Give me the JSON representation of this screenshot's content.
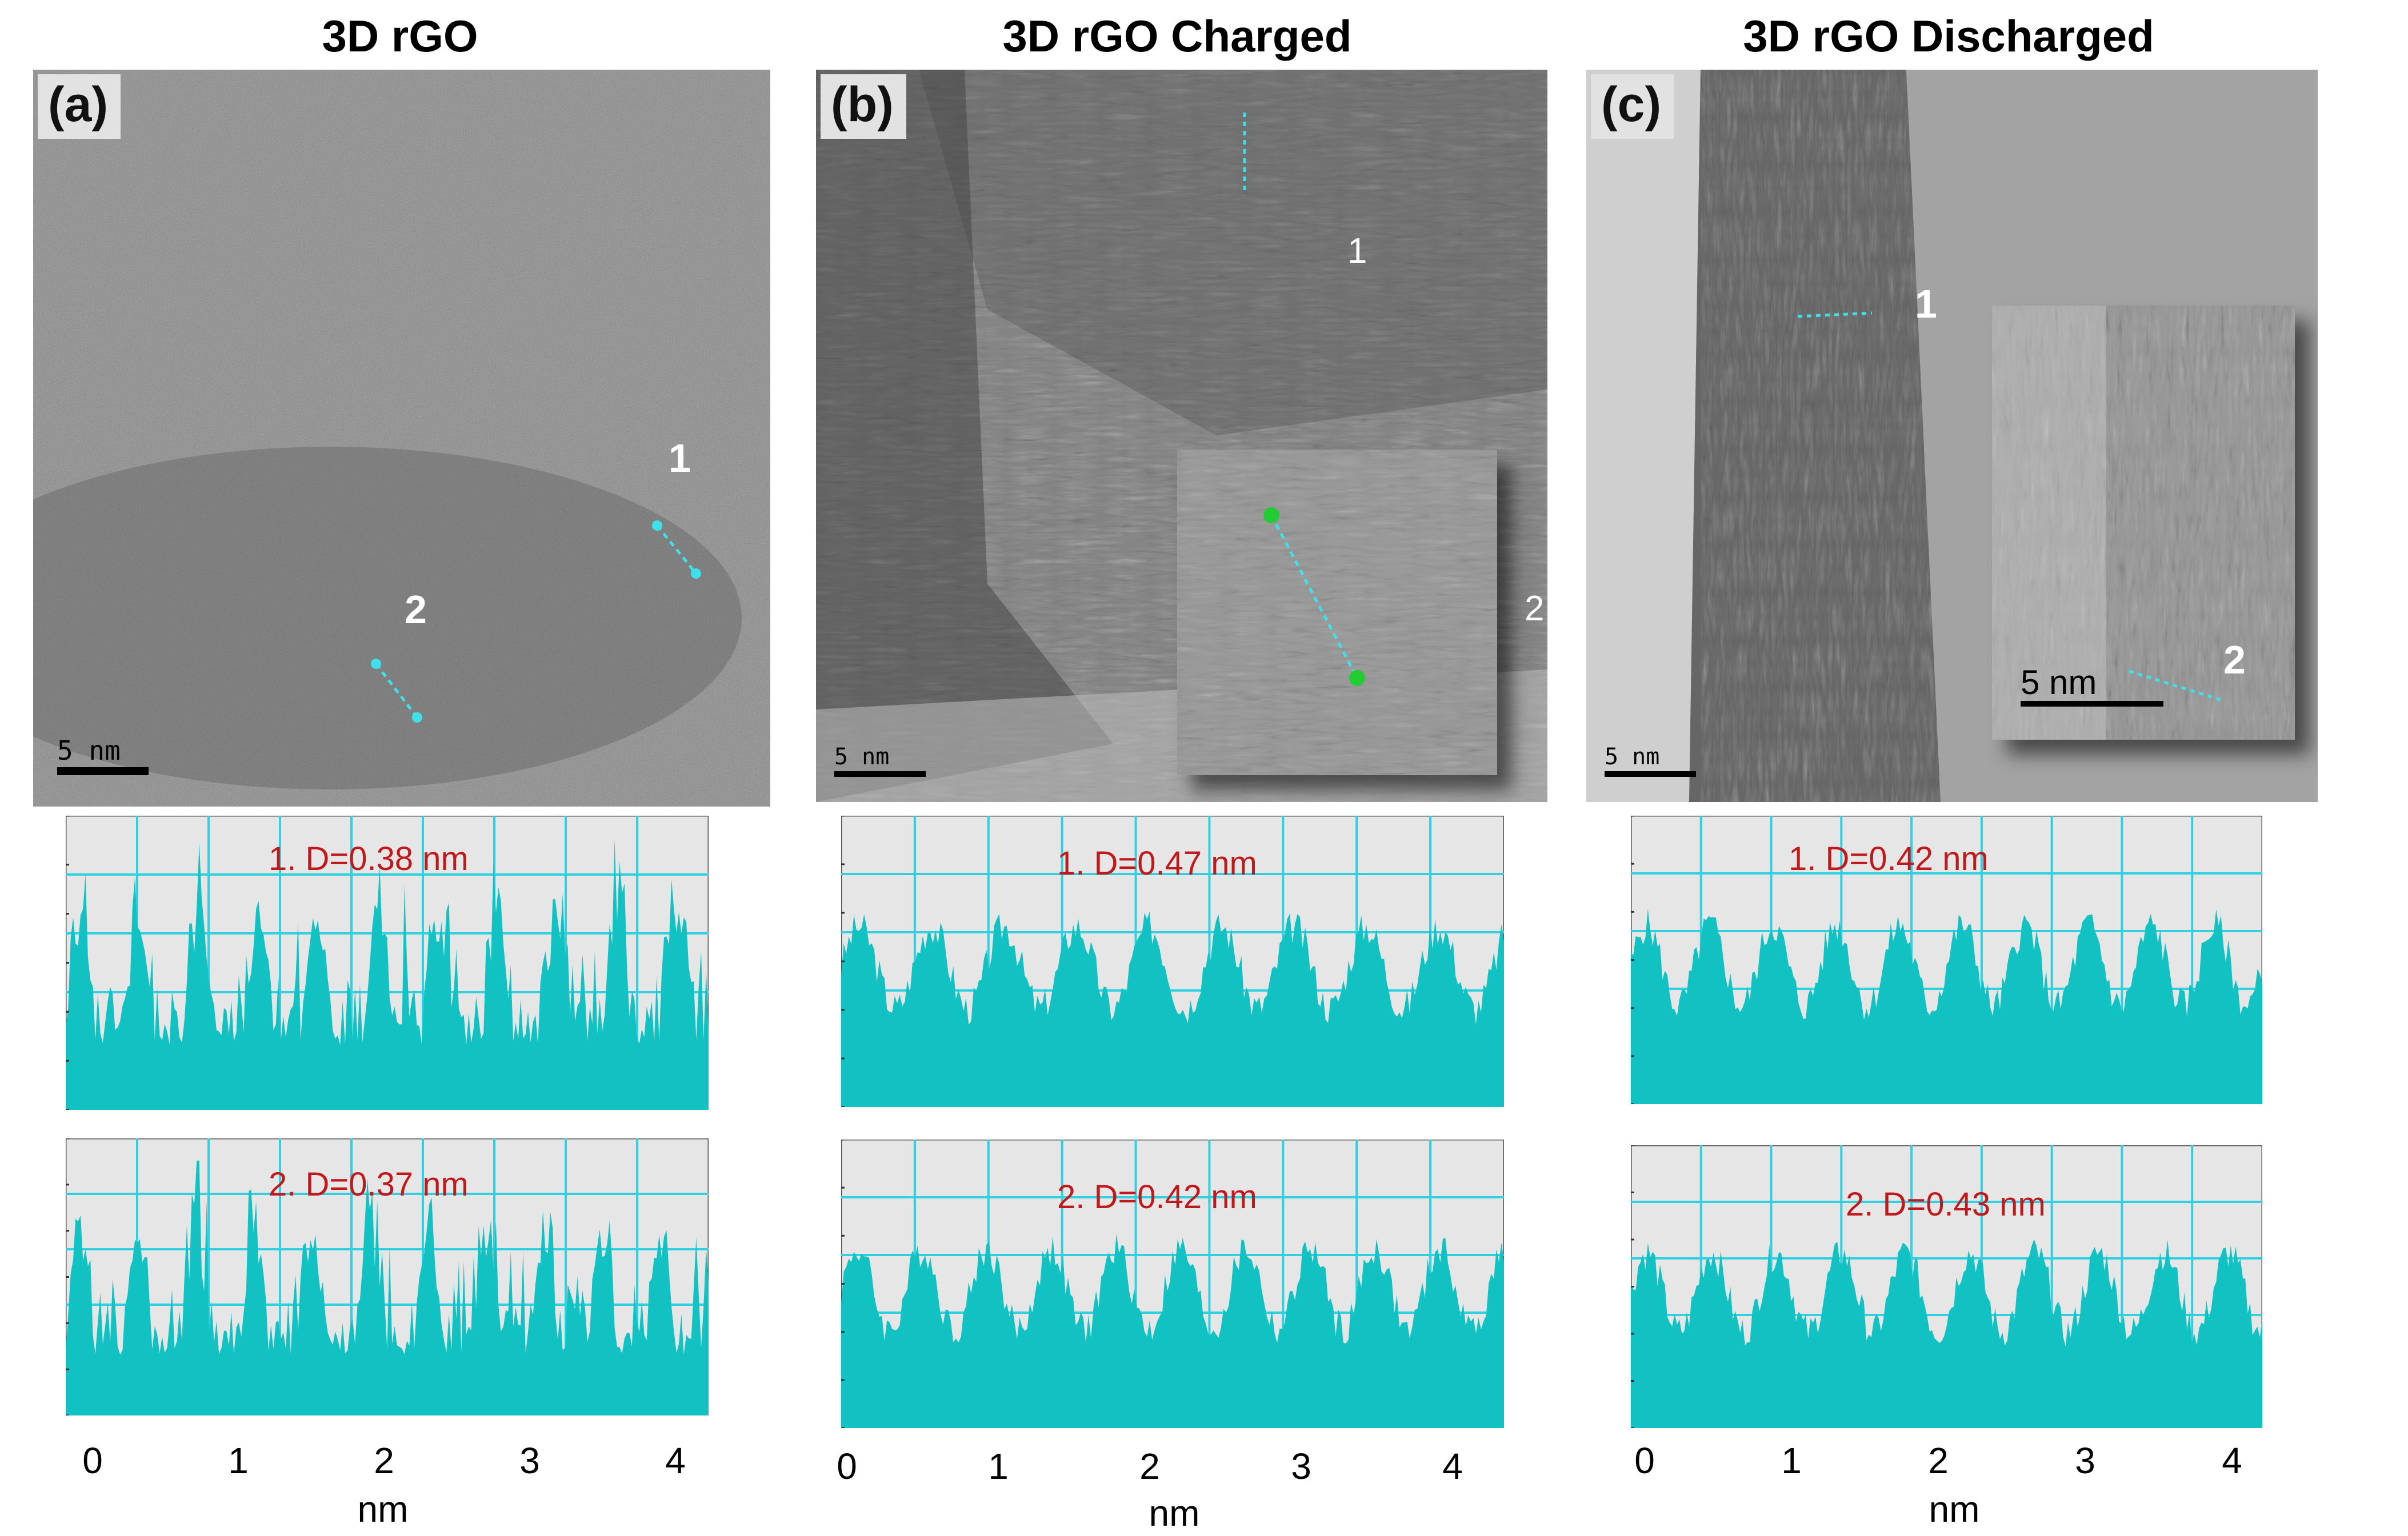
{
  "columns": [
    {
      "title": "3D rGO",
      "panel": "(a)",
      "scale": "5 nm",
      "markers": [
        "1",
        "2"
      ],
      "profiles": [
        "1. D=0.38 nm",
        "2. D=0.37 nm"
      ],
      "xticks": [
        "0",
        "1",
        "2",
        "3",
        "4"
      ],
      "xlabel": "nm"
    },
    {
      "title": "3D rGO Charged",
      "panel": "(b)",
      "scale": "5 nm",
      "markers": [
        "1",
        "2"
      ],
      "profiles": [
        "1. D=0.47 nm",
        "2. D=0.42 nm"
      ],
      "xticks": [
        "0",
        "1",
        "2",
        "3",
        "4"
      ],
      "xlabel": "nm"
    },
    {
      "title": "3D rGO Discharged",
      "panel": "(c)",
      "scale": "5 nm",
      "inset_scale": "5 nm",
      "markers": [
        "1",
        "2"
      ],
      "profiles": [
        "1. D=0.42 nm",
        "2. D=0.43 nm"
      ],
      "xticks": [
        "0",
        "1",
        "2",
        "3",
        "4"
      ],
      "xlabel": "nm"
    }
  ],
  "colors": {
    "profile_fill": "#12c2c2",
    "grid": "#30d0e0",
    "plot_bg": "#e6e6e6",
    "annotation": "#c0191c",
    "marker_line": "#3fe0ea"
  },
  "chart_data": [
    {
      "type": "area",
      "title": "1. D=0.38 nm",
      "panel": "(a)",
      "xlabel": "nm",
      "xlim": [
        0,
        4.1
      ],
      "period": 0.38
    },
    {
      "type": "area",
      "title": "2. D=0.37 nm",
      "panel": "(a)",
      "xlabel": "nm",
      "xlim": [
        0,
        4.1
      ],
      "period": 0.37
    },
    {
      "type": "area",
      "title": "1. D=0.47 nm",
      "panel": "(b)",
      "xlabel": "nm",
      "xlim": [
        0,
        4.3
      ],
      "period": 0.47
    },
    {
      "type": "area",
      "title": "2. D=0.42 nm",
      "panel": "(b)",
      "xlabel": "nm",
      "xlim": [
        0,
        4.3
      ],
      "period": 0.42
    },
    {
      "type": "area",
      "title": "1. D=0.42 nm",
      "panel": "(c)",
      "xlabel": "nm",
      "xlim": [
        0,
        4.2
      ],
      "period": 0.42
    },
    {
      "type": "area",
      "title": "2. D=0.43 nm",
      "panel": "(c)",
      "xlabel": "nm",
      "xlim": [
        0,
        4.2
      ],
      "period": 0.43
    }
  ]
}
